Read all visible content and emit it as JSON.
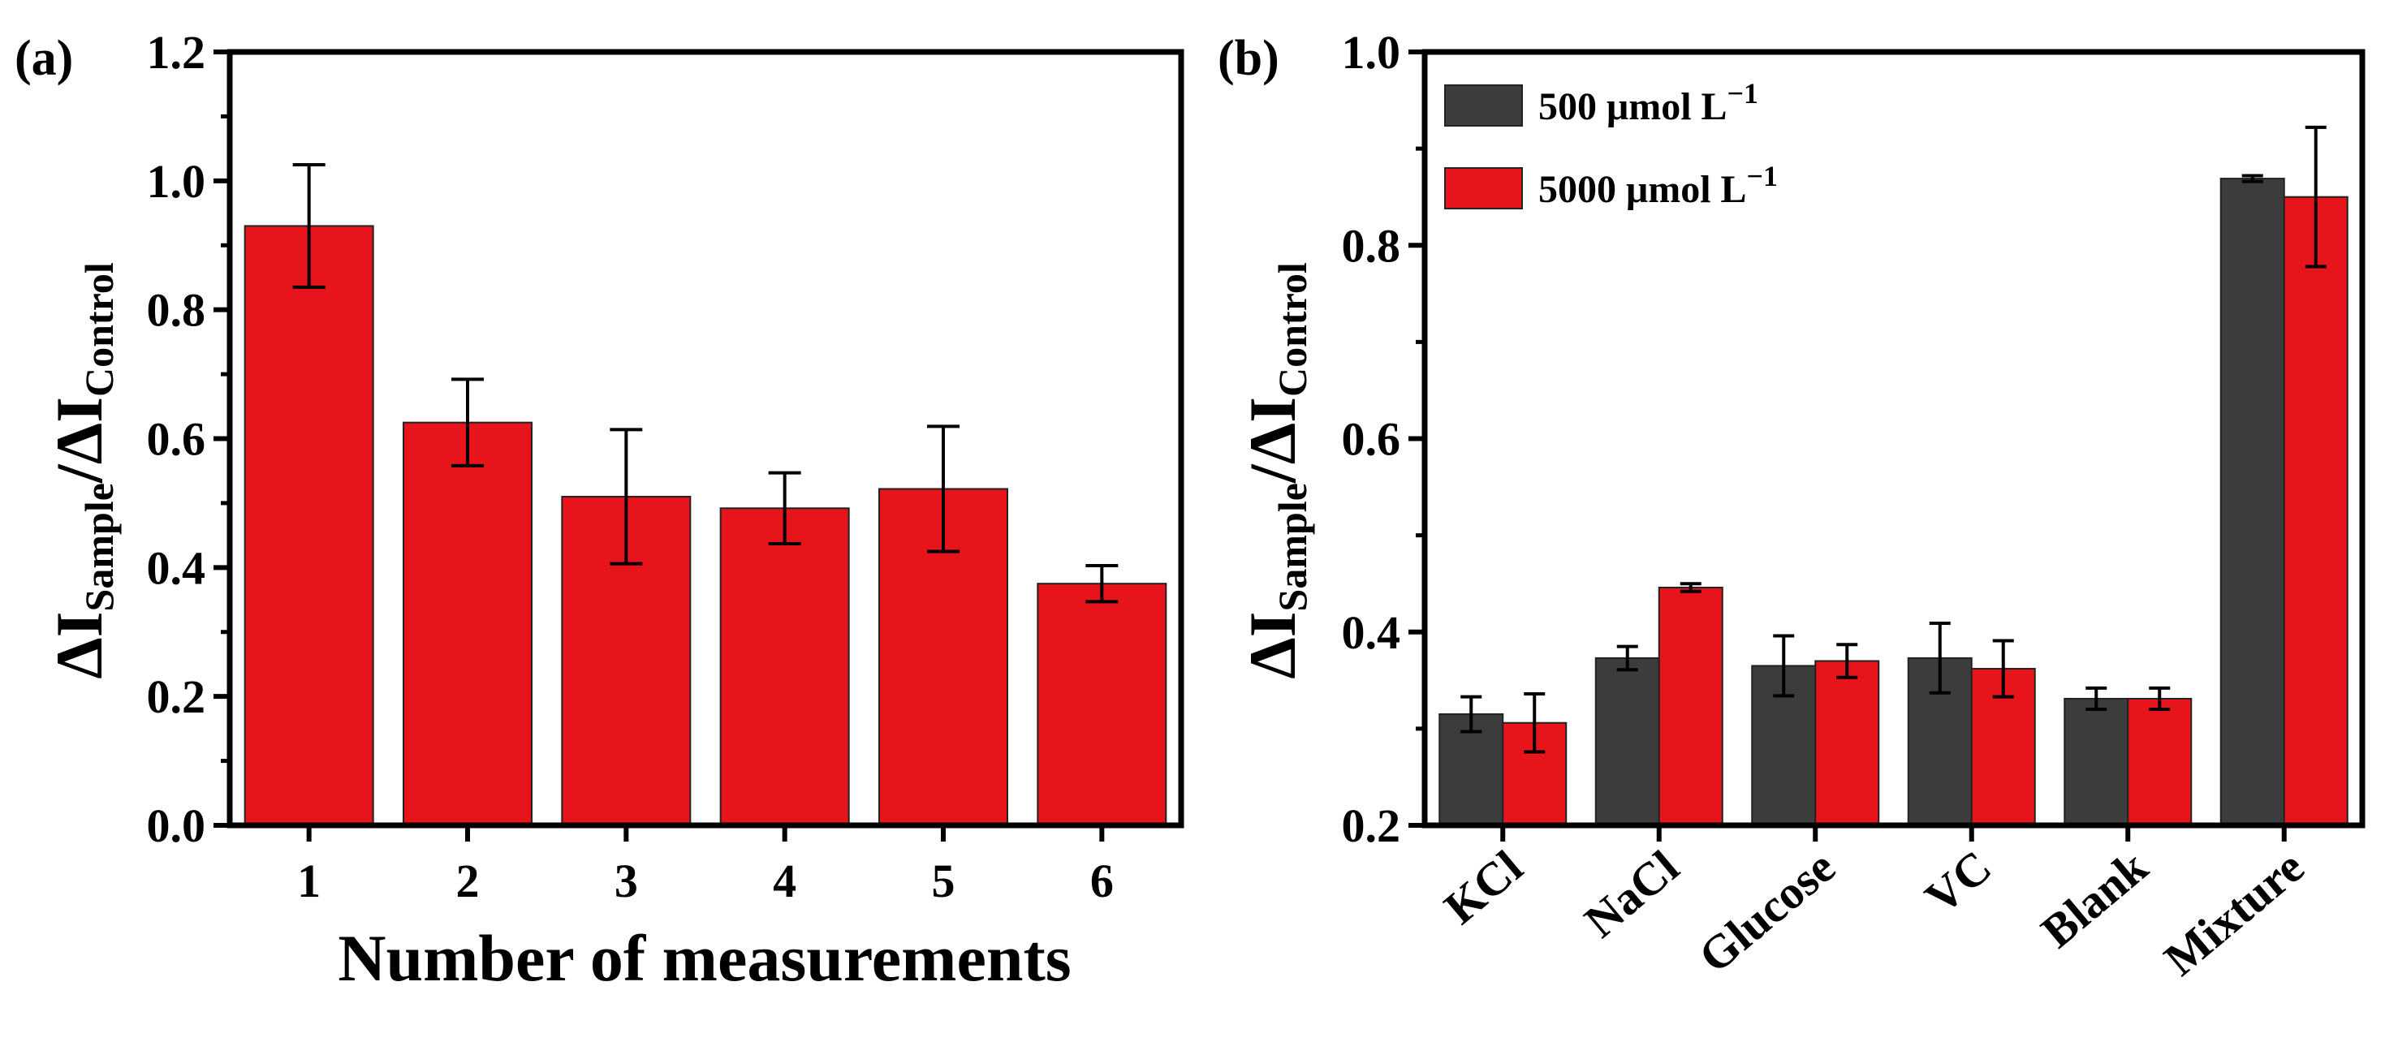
{
  "chart_data": [
    {
      "type": "bar",
      "panel_label": "(a)",
      "xlabel": "Number of measurements",
      "ylabel": {
        "delta": "ΔI",
        "sub1": "Sample",
        "slash": "/ΔI",
        "sub2": "Control"
      },
      "ylim": [
        0,
        1.2
      ],
      "yticks": [
        "0.0",
        "0.2",
        "0.4",
        "0.6",
        "0.8",
        "1.0",
        "1.2"
      ],
      "categories": [
        "1",
        "2",
        "3",
        "4",
        "5",
        "6"
      ],
      "series": [
        {
          "name": "",
          "color": "#e8141c",
          "values": [
            0.93,
            0.625,
            0.51,
            0.492,
            0.522,
            0.375
          ],
          "errors": [
            0.095,
            0.067,
            0.104,
            0.055,
            0.097,
            0.028
          ]
        }
      ]
    },
    {
      "type": "bar",
      "panel_label": "(b)",
      "xlabel": "",
      "ylabel": {
        "delta": "ΔI",
        "sub1": "Sample",
        "slash": "/ΔI",
        "sub2": "Control"
      },
      "ylim": [
        0.2,
        1.0
      ],
      "yticks": [
        "0.2",
        "0.4",
        "0.6",
        "0.8",
        "1.0"
      ],
      "categories": [
        "KCl",
        "NaCl",
        "Glucose",
        "VC",
        "Blank",
        "Mixture"
      ],
      "legend_position": "top-left",
      "series": [
        {
          "name": "500   μmol L",
          "sup": "−1",
          "color": "#3c3c3c",
          "values": [
            0.315,
            0.373,
            0.365,
            0.373,
            0.331,
            0.869
          ],
          "errors": [
            0.018,
            0.012,
            0.031,
            0.036,
            0.011,
            0.003
          ]
        },
        {
          "name": "5000 μmol L",
          "sup": "−1",
          "color": "#e8141c",
          "values": [
            0.306,
            0.446,
            0.37,
            0.362,
            0.331,
            0.85
          ],
          "errors": [
            0.03,
            0.004,
            0.017,
            0.029,
            0.011,
            0.072
          ]
        }
      ]
    }
  ]
}
